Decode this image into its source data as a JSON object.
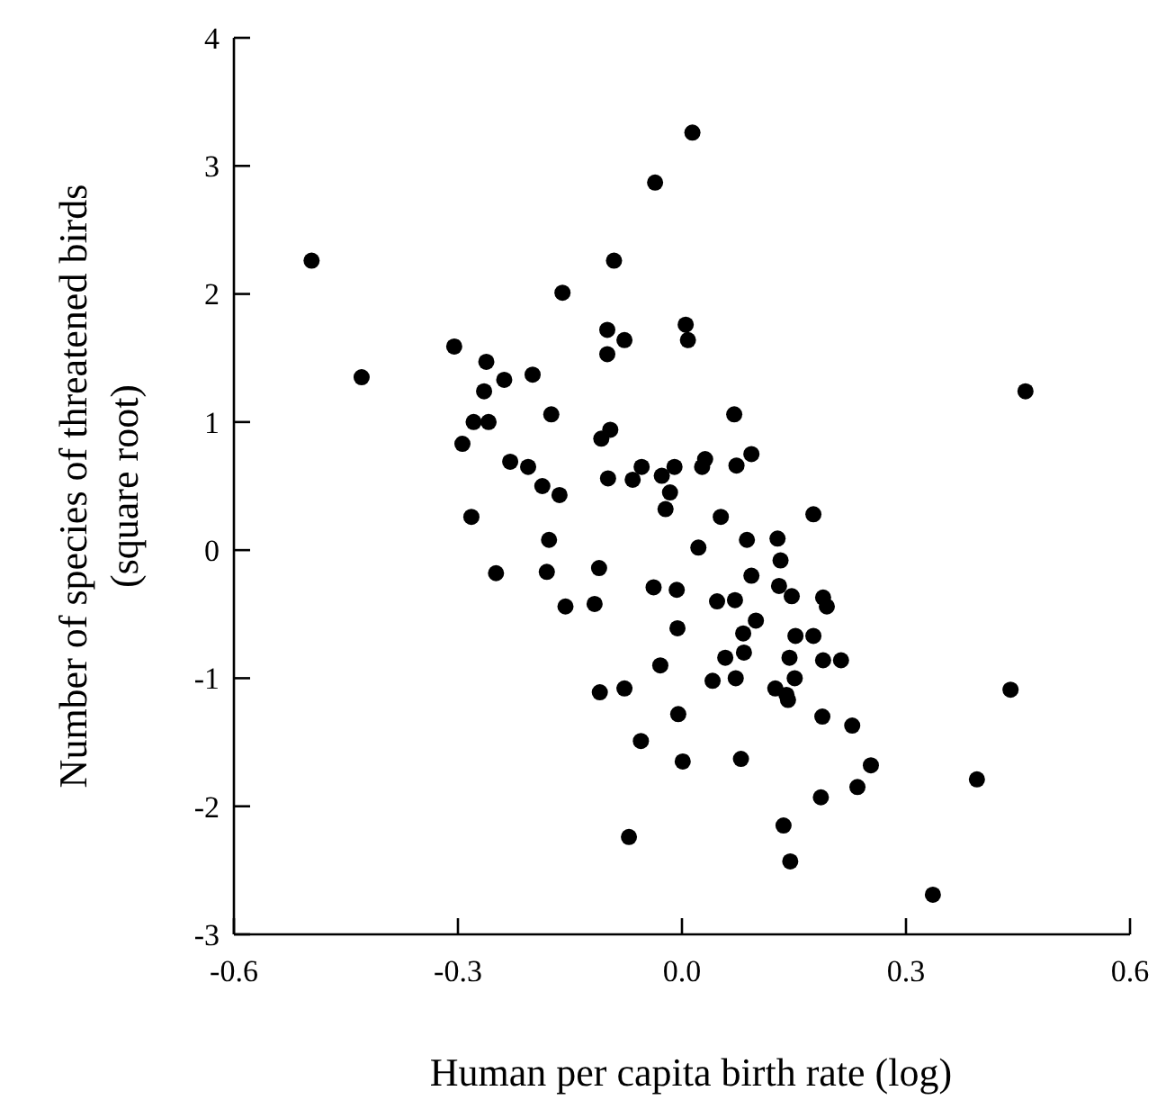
{
  "chart_data": {
    "type": "scatter",
    "xlabel": "Human per capita birth rate (log)",
    "ylabel": "Number of species of threatened birds\n(square root)",
    "xlim": [
      -0.6,
      0.6
    ],
    "xticks": [
      {
        "value": -0.6,
        "label": "-0.6"
      },
      {
        "value": -0.3,
        "label": "-0.3"
      },
      {
        "value": 0,
        "label": "0.0"
      },
      {
        "value": 0.3,
        "label": "0.3"
      },
      {
        "value": 0.6,
        "label": "0.6"
      }
    ],
    "ylim": [
      -3,
      4
    ],
    "yticks": [
      -3,
      -2,
      -1,
      0,
      1,
      2,
      3,
      4
    ],
    "marker": "circle",
    "series": [
      {
        "color": "#000000",
        "x": [
          -0.496,
          -0.16,
          -0.091,
          -0.036,
          -0.429,
          -0.305,
          -0.262,
          -0.265,
          -0.238,
          -0.2,
          -0.1,
          -0.077,
          -0.1,
          0.005,
          0.008,
          -0.279,
          -0.259,
          -0.294,
          -0.175,
          -0.108,
          -0.096,
          -0.23,
          -0.206,
          -0.187,
          -0.164,
          -0.282,
          -0.099,
          -0.066,
          -0.054,
          -0.027,
          -0.01,
          -0.016,
          -0.022,
          0.014,
          0.46,
          0.07,
          0.031,
          0.027,
          0.073,
          0.093,
          0.052,
          0.176,
          -0.178,
          -0.249,
          -0.181,
          -0.111,
          -0.156,
          -0.117,
          -0.038,
          -0.007,
          -0.006,
          -0.029,
          -0.11,
          -0.077,
          -0.005,
          -0.055,
          0.001,
          -0.071,
          0.022,
          0.087,
          0.128,
          0.132,
          0.093,
          0.13,
          0.147,
          0.047,
          0.071,
          0.189,
          0.194,
          0.099,
          0.082,
          0.152,
          0.176,
          0.058,
          0.083,
          0.144,
          0.189,
          0.213,
          0.041,
          0.072,
          0.151,
          0.125,
          0.14,
          0.142,
          0.44,
          0.188,
          0.228,
          0.079,
          0.253,
          0.395,
          0.235,
          0.186,
          0.136,
          0.145,
          0.336
        ],
        "values": [
          2.26,
          2.01,
          2.26,
          2.87,
          1.35,
          1.59,
          1.47,
          1.24,
          1.33,
          1.37,
          1.72,
          1.64,
          1.53,
          1.76,
          1.64,
          1.0,
          1.0,
          0.83,
          1.06,
          0.87,
          0.94,
          0.69,
          0.65,
          0.5,
          0.43,
          0.26,
          0.56,
          0.55,
          0.65,
          0.58,
          0.65,
          0.45,
          0.32,
          3.26,
          1.24,
          1.06,
          0.71,
          0.65,
          0.66,
          0.75,
          0.26,
          0.28,
          0.08,
          -0.18,
          -0.17,
          -0.14,
          -0.44,
          -0.42,
          -0.29,
          -0.31,
          -0.61,
          -0.9,
          -1.11,
          -1.08,
          -1.28,
          -1.49,
          -1.65,
          -2.24,
          0.02,
          0.08,
          0.09,
          -0.08,
          -0.2,
          -0.28,
          -0.36,
          -0.4,
          -0.39,
          -0.37,
          -0.44,
          -0.55,
          -0.65,
          -0.67,
          -0.67,
          -0.84,
          -0.8,
          -0.84,
          -0.86,
          -0.86,
          -1.02,
          -1.0,
          -1.0,
          -1.08,
          -1.13,
          -1.17,
          -1.09,
          -1.3,
          -1.37,
          -1.63,
          -1.68,
          -1.79,
          -1.85,
          -1.93,
          -2.15,
          -2.43,
          -2.69
        ]
      }
    ]
  }
}
